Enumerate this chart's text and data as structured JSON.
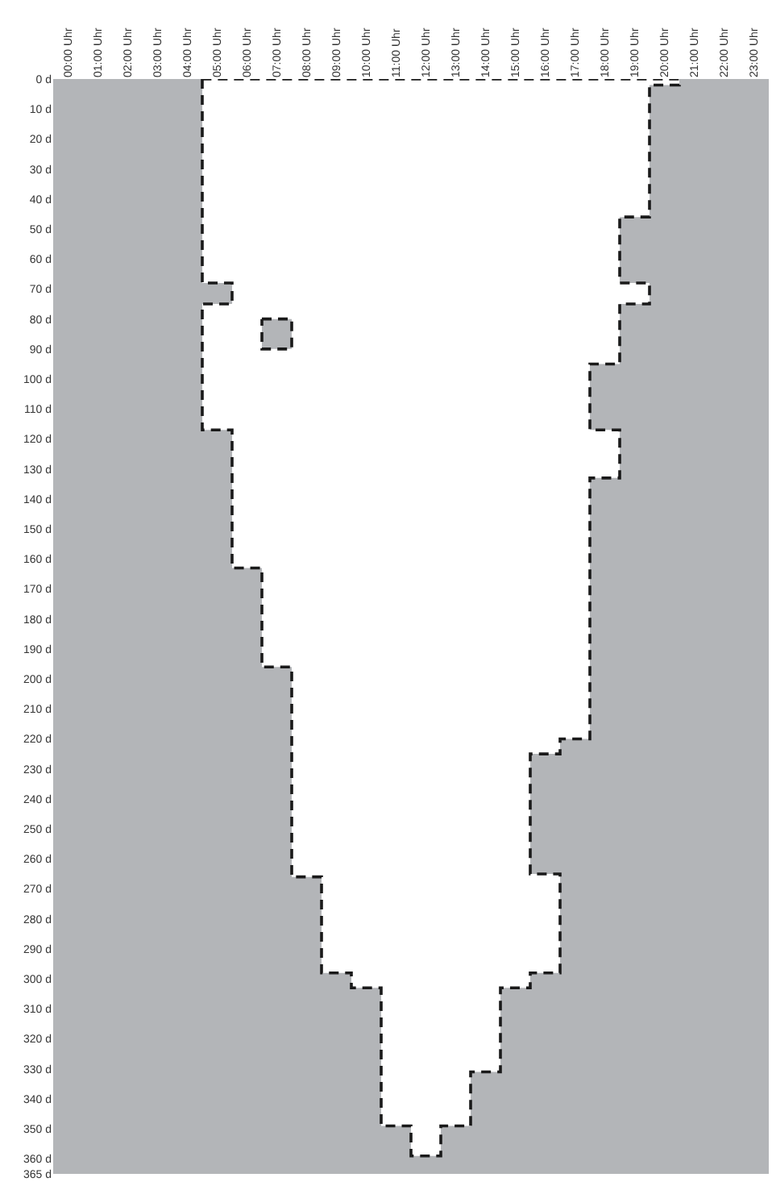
{
  "chart_data": {
    "type": "area",
    "xlim": [
      "2000-01-01T00:00",
      "2000-01-02T00:00"
    ],
    "xticks": [
      {
        "value": "2000-01-01T00:30",
        "label": "00:00 Uhr"
      },
      {
        "value": "2000-01-01T01:30",
        "label": "01:00 Uhr"
      },
      {
        "value": "2000-01-01T02:30",
        "label": "02:00 Uhr"
      },
      {
        "value": "2000-01-01T03:30",
        "label": "03:00 Uhr"
      },
      {
        "value": "2000-01-01T04:30",
        "label": "04:00 Uhr"
      },
      {
        "value": "2000-01-01T05:30",
        "label": "05:00 Uhr"
      },
      {
        "value": "2000-01-01T06:30",
        "label": "06:00 Uhr"
      },
      {
        "value": "2000-01-01T07:30",
        "label": "07:00 Uhr"
      },
      {
        "value": "2000-01-01T08:30",
        "label": "08:00 Uhr"
      },
      {
        "value": "2000-01-01T09:30",
        "label": "09:00 Uhr"
      },
      {
        "value": "2000-01-01T10:30",
        "label": "10:00 Uhr"
      },
      {
        "value": "2000-01-01T11:30",
        "label": "11:00 Uhr"
      },
      {
        "value": "2000-01-01T12:30",
        "label": "12:00 Uhr"
      },
      {
        "value": "2000-01-01T13:30",
        "label": "13:00 Uhr"
      },
      {
        "value": "2000-01-01T14:30",
        "label": "14:00 Uhr"
      },
      {
        "value": "2000-01-01T15:30",
        "label": "15:00 Uhr"
      },
      {
        "value": "2000-01-01T16:30",
        "label": "16:00 Uhr"
      },
      {
        "value": "2000-01-01T17:30",
        "label": "17:00 Uhr"
      },
      {
        "value": "2000-01-01T18:30",
        "label": "18:00 Uhr"
      },
      {
        "value": "2000-01-01T19:30",
        "label": "19:00 Uhr"
      },
      {
        "value": "2000-01-01T20:30",
        "label": "20:00 Uhr"
      },
      {
        "value": "2000-01-01T21:30",
        "label": "21:00 Uhr"
      },
      {
        "value": "2000-01-01T22:30",
        "label": "22:00 Uhr"
      },
      {
        "value": "2000-01-01T23:30",
        "label": "23:00 Uhr"
      }
    ],
    "ylim": [
      365,
      0
    ],
    "yticks": [
      {
        "value": 0,
        "label": "0 d"
      },
      {
        "value": 10,
        "label": "10 d"
      },
      {
        "value": 20,
        "label": "20 d"
      },
      {
        "value": 30,
        "label": "30 d"
      },
      {
        "value": 40,
        "label": "40 d"
      },
      {
        "value": 50,
        "label": "50 d"
      },
      {
        "value": 60,
        "label": "60 d"
      },
      {
        "value": 70,
        "label": "70 d"
      },
      {
        "value": 80,
        "label": "80 d"
      },
      {
        "value": 90,
        "label": "90 d"
      },
      {
        "value": 100,
        "label": "100 d"
      },
      {
        "value": 110,
        "label": "110 d"
      },
      {
        "value": 120,
        "label": "120 d"
      },
      {
        "value": 130,
        "label": "130 d"
      },
      {
        "value": 140,
        "label": "140 d"
      },
      {
        "value": 150,
        "label": "150 d"
      },
      {
        "value": 160,
        "label": "160 d"
      },
      {
        "value": 170,
        "label": "170 d"
      },
      {
        "value": 180,
        "label": "180 d"
      },
      {
        "value": 190,
        "label": "190 d"
      },
      {
        "value": 200,
        "label": "200 d"
      },
      {
        "value": 210,
        "label": "210 d"
      },
      {
        "value": 220,
        "label": "220 d"
      },
      {
        "value": 230,
        "label": "230 d"
      },
      {
        "value": 240,
        "label": "240 d"
      },
      {
        "value": 250,
        "label": "250 d"
      },
      {
        "value": 260,
        "label": "260 d"
      },
      {
        "value": 270,
        "label": "270 d"
      },
      {
        "value": 280,
        "label": "280 d"
      },
      {
        "value": 290,
        "label": "290 d"
      },
      {
        "value": 300,
        "label": "300 d"
      },
      {
        "value": 310,
        "label": "310 d"
      },
      {
        "value": 320,
        "label": "320 d"
      },
      {
        "value": 330,
        "label": "330 d"
      },
      {
        "value": 340,
        "label": "340 d"
      },
      {
        "value": 350,
        "label": "350 d"
      },
      {
        "value": 360,
        "label": "360 d"
      },
      {
        "value": 365,
        "label": "365 d"
      }
    ],
    "grid": false,
    "line_style": "dashed",
    "bands": [
      {
        "axis": "y",
        "from": 0,
        "to": 365,
        "color": "#b3b5b8"
      }
    ],
    "series": [
      {
        "color": "#ffffff",
        "x": [
          "2000-01-01T05:00",
          "2000-01-01T05:00",
          "2000-01-01T06:00",
          "2000-01-01T06:00",
          "2000-01-01T05:00",
          "2000-01-01T05:00",
          "2000-01-01T06:00",
          "2000-01-01T06:00",
          "2000-01-01T07:00",
          "2000-01-01T07:00",
          "2000-01-01T08:00",
          "2000-01-01T08:00",
          "2000-01-01T09:00",
          "2000-01-01T09:00",
          "2000-01-01T10:00",
          "2000-01-01T10:00",
          "2000-01-01T11:00",
          "2000-01-01T11:00",
          "2000-01-01T12:00",
          "2000-01-01T12:00",
          "2000-01-01T13:00",
          "2000-01-01T13:00",
          "2000-01-01T14:00",
          "2000-01-01T14:00",
          "2000-01-01T15:00",
          "2000-01-01T15:00",
          "2000-01-01T16:00",
          "2000-01-01T16:00",
          "2000-01-01T17:00",
          "2000-01-01T17:00",
          "2000-01-01T16:00",
          "2000-01-01T16:00",
          "2000-01-01T17:00",
          "2000-01-01T17:00",
          "2000-01-01T18:00",
          "2000-01-01T18:00",
          "2000-01-01T19:00",
          "2000-01-01T19:00",
          "2000-01-01T18:00",
          "2000-01-01T18:00",
          "2000-01-01T19:00",
          "2000-01-01T19:00",
          "2000-01-01T20:00",
          "2000-01-01T20:00",
          "2000-01-01T19:00",
          "2000-01-01T19:00",
          "2000-01-01T20:00",
          "2000-01-01T20:00",
          "2000-01-01T21:00",
          "2000-01-01T21:00",
          "2000-01-01T05:00"
        ],
        "values": [
          0,
          68,
          68,
          75,
          75,
          117,
          117,
          163,
          163,
          196,
          196,
          266,
          266,
          298,
          298,
          303,
          303,
          349,
          349,
          359,
          359,
          349,
          349,
          331,
          331,
          303,
          303,
          298,
          298,
          265,
          265,
          225,
          225,
          220,
          220,
          133,
          133,
          117,
          117,
          95,
          95,
          75,
          75,
          68,
          68,
          46,
          46,
          2,
          2,
          0,
          0
        ]
      },
      {
        "color": "#b3b5b8",
        "x": [
          "2000-01-01T07:00",
          "2000-01-01T08:00",
          "2000-01-01T08:00",
          "2000-01-01T07:00",
          "2000-01-01T07:00"
        ],
        "values": [
          80,
          80,
          90,
          90,
          80
        ]
      }
    ]
  }
}
